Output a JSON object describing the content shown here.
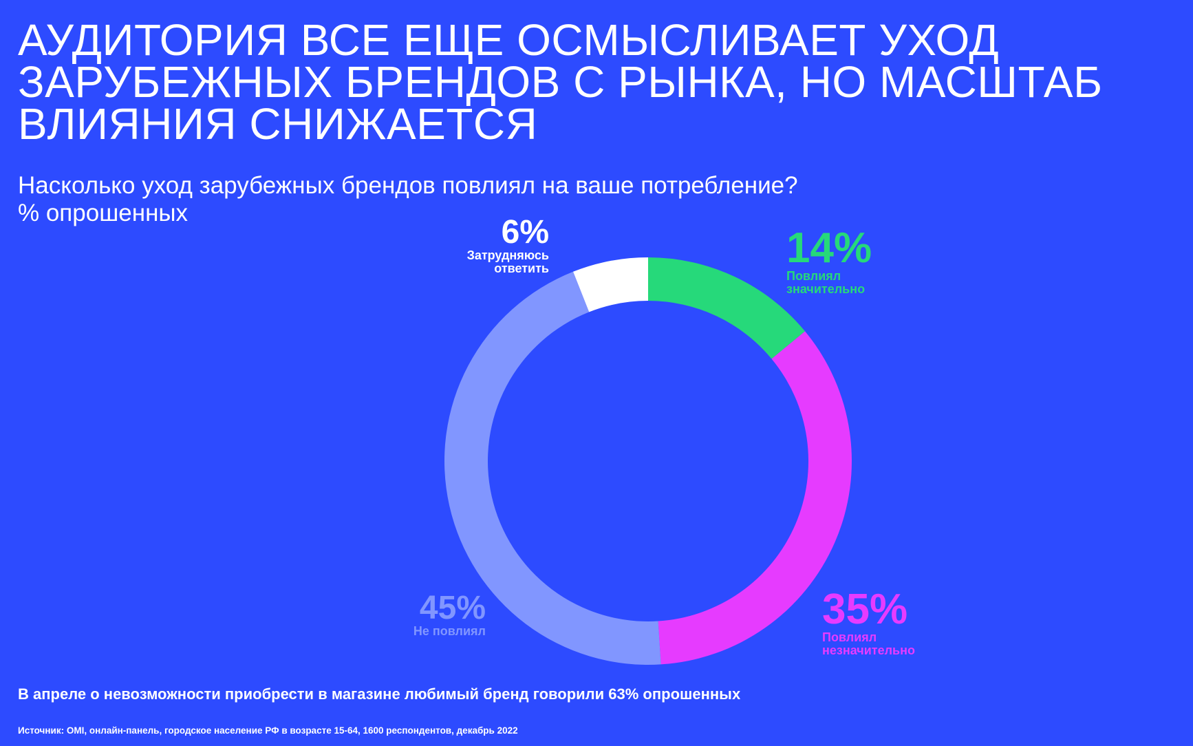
{
  "header": {
    "title": "Аудитория все еще осмысливает уход зарубежных брендов с рынка, но масштаб влияния снижается",
    "question": "Насколько уход зарубежных брендов повлиял на ваше потребление?",
    "unit": "% опрошенных"
  },
  "chart_data": {
    "type": "pie",
    "variant": "donut",
    "start_angle_deg": 0,
    "direction": "clockwise",
    "slices": [
      {
        "label": "Повлиял значительно",
        "value": 14,
        "display": "14%",
        "color": "#26d97a"
      },
      {
        "label": "Повлиял незначительно",
        "value": 35,
        "display": "35%",
        "color": "#e63bff"
      },
      {
        "label": "Не повлиял",
        "value": 45,
        "display": "45%",
        "color": "#8196ff"
      },
      {
        "label": "Затрудняюсь ответить",
        "value": 6,
        "display": "6%",
        "color": "#ffffff"
      }
    ]
  },
  "labels": {
    "strong": {
      "pct": "14%",
      "line1": "Повлиял",
      "line2": "значительно"
    },
    "weak": {
      "pct": "35%",
      "line1": "Повлиял",
      "line2": "незначительно"
    },
    "none": {
      "pct": "45%",
      "line1": "Не повлиял"
    },
    "unsure": {
      "pct": "6%",
      "line1": "Затрудняюсь",
      "line2": "ответить"
    }
  },
  "footer": {
    "note": "В апреле о невозможности приобрести в магазине любимый бренд говорили 63% опрошенных",
    "source": "Источник: OMI, онлайн-панель, городское население РФ в возрасте 15-64, 1600 респондентов, декабрь 2022"
  },
  "colors": {
    "background": "#2d4bff",
    "text": "#ffffff"
  }
}
